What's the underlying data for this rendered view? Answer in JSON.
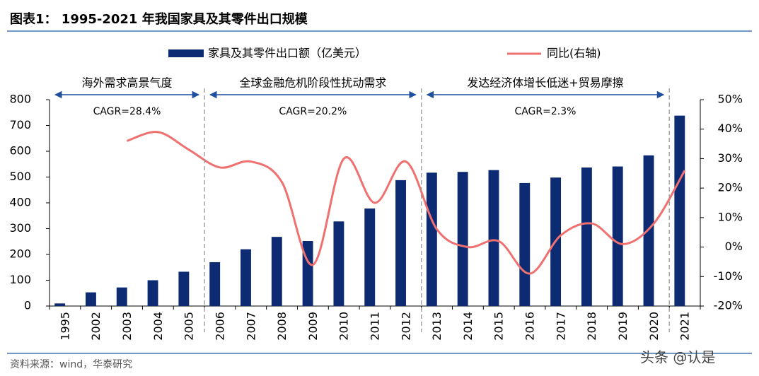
{
  "header": {
    "title": "图表1： 1995-2021 年我国家具及其零件出口规模"
  },
  "chart_data": {
    "type": "bar-line",
    "categories": [
      "1995",
      "2002",
      "2003",
      "2004",
      "2005",
      "2006",
      "2007",
      "2008",
      "2009",
      "2010",
      "2011",
      "2012",
      "2013",
      "2014",
      "2015",
      "2016",
      "2017",
      "2018",
      "2019",
      "2020",
      "2021"
    ],
    "series": [
      {
        "name": "家具及其零件出口额（亿美元）",
        "type": "bar",
        "color": "#0c2b73",
        "values": [
          10,
          53,
          72,
          100,
          133,
          170,
          220,
          268,
          252,
          328,
          378,
          488,
          517,
          520,
          527,
          477,
          498,
          537,
          541,
          584,
          738
        ]
      },
      {
        "name": "同比(右轴)",
        "type": "line",
        "axis": "y2",
        "color": "#f07070",
        "values": [
          null,
          null,
          36,
          39,
          33,
          27,
          29,
          22,
          -6,
          30,
          15,
          29,
          6,
          0,
          2,
          -9,
          4,
          8,
          1,
          8,
          26
        ]
      }
    ],
    "ylim": [
      0,
      800
    ],
    "yticks": [
      0,
      100,
      200,
      300,
      400,
      500,
      600,
      700,
      800
    ],
    "y2lim": [
      -20,
      50
    ],
    "y2ticks": [
      {
        "value": -20,
        "label": "-20%"
      },
      {
        "value": -10,
        "label": "-10%"
      },
      {
        "value": 0,
        "label": "0%"
      },
      {
        "value": 10,
        "label": "10%"
      },
      {
        "value": 20,
        "label": "20%"
      },
      {
        "value": 30,
        "label": "30%"
      },
      {
        "value": 40,
        "label": "40%"
      },
      {
        "value": 50,
        "label": "50%"
      }
    ],
    "periods": [
      {
        "label": "海外需求高景气度",
        "cagr": "CAGR=28.4%"
      },
      {
        "label": "全球金融危机阶段性扰动需求",
        "cagr": "CAGR=20.2%"
      },
      {
        "label": "发达经济体增长低迷+贸易摩擦",
        "cagr": "CAGR=2.3%"
      }
    ]
  },
  "footer": {
    "source": "资料来源：wind，华泰研究",
    "watermark": "头条 @认是"
  }
}
